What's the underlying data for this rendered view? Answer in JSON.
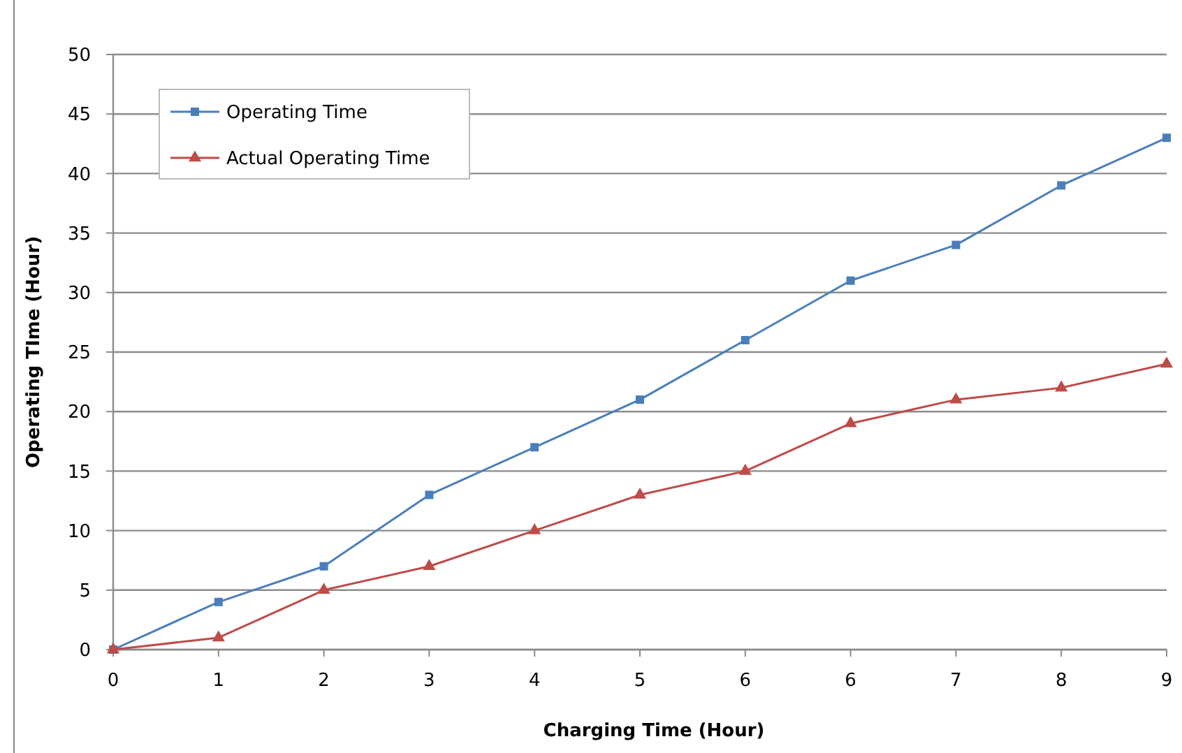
{
  "chart_data": {
    "type": "line",
    "xlabel": "Charging Time (Hour)",
    "ylabel": "Operating TIme (Hour)",
    "categories": [
      "0",
      "1",
      "2",
      "3",
      "4",
      "5",
      "6",
      "6",
      "7",
      "8",
      "9"
    ],
    "series": [
      {
        "name": "Operating Time",
        "color": "#4a7ebb",
        "marker": "square",
        "values": [
          0,
          4,
          7,
          13,
          17,
          21,
          26,
          31,
          34,
          39,
          43
        ]
      },
      {
        "name": "Actual Operating Time",
        "color": "#be4b48",
        "marker": "triangle",
        "values": [
          0,
          1,
          5,
          7,
          10,
          13,
          15,
          19,
          21,
          22,
          24
        ]
      }
    ],
    "ylim": [
      0,
      50
    ],
    "yticks": [
      0,
      5,
      10,
      15,
      20,
      25,
      30,
      35,
      40,
      45,
      50
    ],
    "grid": "y",
    "legend": "top left",
    "line_style": "solid"
  }
}
